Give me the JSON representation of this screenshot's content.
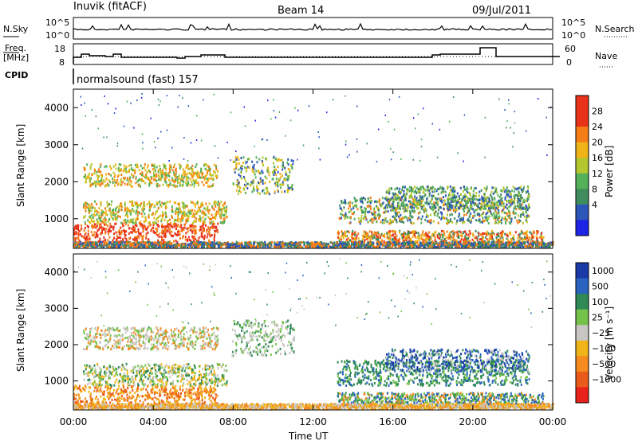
{
  "header": {
    "station": "Inuvik (fitACF)",
    "beam": "Beam 14",
    "date": "09/Jul/2011"
  },
  "panels": {
    "nsky": {
      "left_label": "N.Sky",
      "right_label": "N.Search",
      "y_ticks_left": [
        "10^5",
        "10^0"
      ],
      "y_ticks_right": [
        "10^5",
        "10^0"
      ]
    },
    "freq": {
      "left_label_1": "Freq.",
      "left_label_2": "[MHz]",
      "right_label": "Nave",
      "y_ticks_left": [
        "18",
        "8"
      ],
      "y_ticks_right": [
        "60",
        "0"
      ]
    },
    "cpid": {
      "label": "CPID",
      "program": "normalsound (fast) 157"
    }
  },
  "chart_data": [
    {
      "type": "heatmap",
      "ylabel": "Slant Range [km]",
      "ylim": [
        200,
        4500
      ],
      "y_ticks": [
        1000,
        2000,
        3000,
        4000
      ],
      "colorbar": {
        "label": "Power [dB]",
        "ticks": [
          4,
          8,
          12,
          16,
          20,
          24,
          28
        ],
        "colors": [
          "#1e24e6",
          "#2c56b8",
          "#3f8c5e",
          "#55b05a",
          "#b5c72e",
          "#f0b418",
          "#f57d15",
          "#e8321a",
          "#e8321a"
        ]
      }
    },
    {
      "type": "heatmap",
      "ylabel": "Slant Range [km]",
      "xlabel": "Time UT",
      "ylim": [
        200,
        4500
      ],
      "y_ticks": [
        1000,
        2000,
        3000,
        4000
      ],
      "x_ticks": [
        "00:00",
        "04:00",
        "08:00",
        "12:00",
        "16:00",
        "20:00",
        "00:00"
      ],
      "colorbar": {
        "label": "Velocity [m s⁻¹]",
        "ticks": [
          "1000",
          "500",
          "100",
          "25",
          "−25",
          "−100",
          "−500",
          "−1000"
        ],
        "colors": [
          "#1a3aa8",
          "#2a64c0",
          "#2f8a55",
          "#74c24a",
          "#c8c6c2",
          "#f0b418",
          "#f58a1e",
          "#ea5a1a",
          "#e82218"
        ]
      }
    }
  ],
  "colors": {
    "power_low": "#2c56b8",
    "power_mid": "#3f8c5e",
    "power_high": "#e8321a",
    "vel_pos": "#2a64c0",
    "vel_neg": "#f58a1e",
    "ground": "#c8c6c2"
  }
}
